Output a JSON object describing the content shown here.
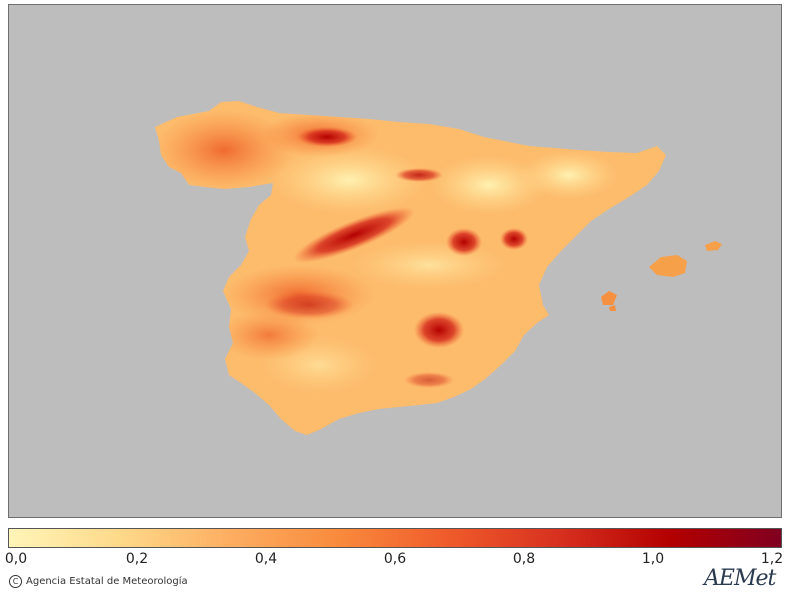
{
  "colorbar": {
    "ticks": [
      "0,0",
      "0,2",
      "0,4",
      "0,6",
      "0,8",
      "1,0",
      "1,2"
    ],
    "tick_values": [
      0.0,
      0.2,
      0.4,
      0.6,
      0.8,
      1.0,
      1.2
    ],
    "min": 0.0,
    "max": 1.2,
    "colors": [
      "#fff5b8",
      "#fed98a",
      "#fdae61",
      "#f98a3c",
      "#ef5a2a",
      "#d7301f",
      "#b30000",
      "#800020"
    ]
  },
  "map": {
    "background_color": "#bdbdbd",
    "regions": [
      "Iberian Peninsula",
      "Balearic Islands"
    ]
  },
  "credit": {
    "copyright_symbol": "C",
    "text": "Agencia Estatal de Meteorología"
  },
  "logo": {
    "text": "AEMet"
  }
}
